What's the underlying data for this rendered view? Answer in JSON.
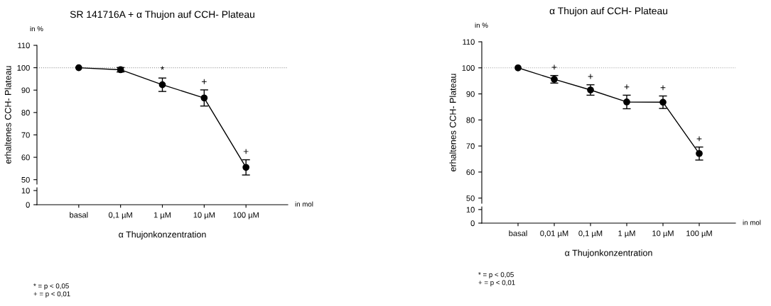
{
  "chart_data": [
    {
      "type": "line",
      "title": "SR 141716A + α Thujon auf CCH- Plateau",
      "ylabel": "erhaltenes CCH- Plateau",
      "xlabel": "α Thujonkonzentration",
      "categories": [
        "basal",
        "0,1 µM",
        "1 µM",
        "10 µM",
        "100 µM"
      ],
      "series": [
        {
          "color": "#000000",
          "values": [
            100,
            99.1,
            92.4,
            86.5,
            55.5
          ],
          "errors": [
            null,
            1.0,
            3.0,
            3.6,
            3.4
          ],
          "value_labels": [
            null,
            null,
            "*",
            "+",
            "+"
          ]
        }
      ],
      "ylim": [
        48,
        110
      ],
      "yticks": [
        50,
        60,
        70,
        80,
        90,
        100,
        110
      ],
      "marker": "circle",
      "grid": false,
      "ref_lines": [
        {
          "axis": "y",
          "value": 100,
          "color": "#a0a0a0",
          "line_style": "dotted"
        }
      ],
      "annotations": [
        "in %",
        "in mol",
        "* = p < 0,05\n+ = p < 0,01"
      ]
    },
    {
      "type": "other",
      "annotations": [
        "10",
        "0"
      ]
    },
    {
      "type": "line",
      "title": "α Thujon auf CCH- Plateau",
      "ylabel": "erhaltenes CCH- Plateau",
      "xlabel": "α Thujonkonzentration",
      "categories": [
        "basal",
        "0,01 µM",
        "0,1 µM",
        "1 µM",
        "10 µM",
        "100 µM"
      ],
      "series": [
        {
          "color": "#000000",
          "values": [
            100,
            95.6,
            91.5,
            86.9,
            86.8,
            67.1
          ],
          "errors": [
            null,
            1.45,
            2.0,
            2.6,
            2.4,
            2.5
          ],
          "value_labels": [
            null,
            "+",
            "+",
            "+",
            "+",
            "+"
          ]
        }
      ],
      "ylim": [
        48,
        110
      ],
      "yticks": [
        50,
        60,
        70,
        80,
        90,
        100,
        110
      ],
      "marker": "circle",
      "grid": false,
      "ref_lines": [
        {
          "axis": "y",
          "value": 100,
          "color": "#a0a0a0",
          "line_style": "dotted"
        }
      ],
      "annotations": [
        "in %",
        "in mol",
        "* = p < 0,05\n+ = p < 0,01"
      ]
    },
    {
      "type": "other",
      "annotations": [
        "10",
        "0"
      ]
    }
  ]
}
